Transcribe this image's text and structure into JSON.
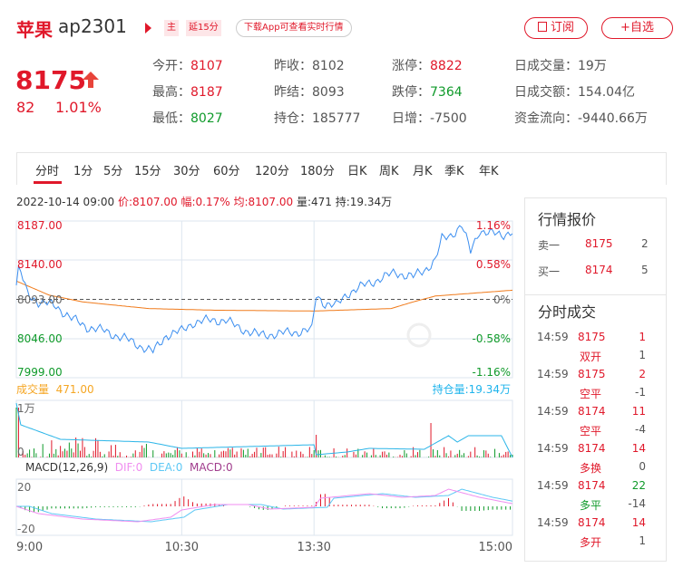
{
  "header": {
    "name": "苹果",
    "code": "ap2301",
    "badge_main": "主",
    "badge_delay": "延15分",
    "download_pill": "下载App可查看实时行情",
    "subscribe_label": "订阅",
    "watchlist_label": "+自选"
  },
  "quote": {
    "price": "8175",
    "change": "82",
    "change_pct": "1.01%",
    "direction": "up"
  },
  "stats": [
    {
      "label": "今开：",
      "value": "8107",
      "color": "red"
    },
    {
      "label": "昨收：",
      "value": "8102",
      "color": "grey"
    },
    {
      "label": "涨停：",
      "value": "8822",
      "color": "red"
    },
    {
      "label": "日成交量：",
      "value": "19万",
      "color": "grey"
    },
    {
      "label": "最高：",
      "value": "8187",
      "color": "red"
    },
    {
      "label": "昨结：",
      "value": "8093",
      "color": "grey"
    },
    {
      "label": "跌停：",
      "value": "7364",
      "color": "green"
    },
    {
      "label": "日成交额：",
      "value": "154.04亿",
      "color": "grey"
    },
    {
      "label": "最低：",
      "value": "8027",
      "color": "green"
    },
    {
      "label": "持仓：",
      "value": "185777",
      "color": "grey"
    },
    {
      "label": "日增：",
      "value": "-7500",
      "color": "grey"
    },
    {
      "label": "资金流向：",
      "value": "-9440.66万",
      "color": "grey"
    }
  ],
  "tabs": [
    "分时",
    "1分",
    "5分",
    "15分",
    "30分",
    "60分",
    "120分",
    "180分",
    "日K",
    "周K",
    "月K",
    "季K",
    "年K"
  ],
  "active_tab": "分时",
  "info": {
    "datetime": "2022-10-14 09:00",
    "price": "价:8107.00",
    "amp": "幅:0.17%",
    "avg": "均:8107.00",
    "vol": "量:471",
    "oi": "持:19.34万"
  },
  "chart": {
    "price_labels_left": [
      "8187.00",
      "8140.00",
      "8093.00",
      "8046.00",
      "7999.00"
    ],
    "pct_labels_right": [
      "1.16%",
      "0.58%",
      "0%",
      "-0.58%",
      "-1.16%"
    ],
    "y_range": [
      7999,
      8187
    ],
    "prev_settle": 8093,
    "time_labels": [
      "9:00",
      "10:30",
      "13:30",
      "15:00"
    ],
    "price_series": [
      [
        0,
        8110
      ],
      [
        1,
        8133
      ],
      [
        5,
        8100
      ],
      [
        10,
        8090
      ],
      [
        18,
        8085
      ],
      [
        25,
        8070
      ],
      [
        32,
        8060
      ],
      [
        40,
        8055
      ],
      [
        50,
        8045
      ],
      [
        58,
        8035
      ],
      [
        62,
        8030
      ],
      [
        68,
        8050
      ],
      [
        75,
        8055
      ],
      [
        80,
        8065
      ],
      [
        88,
        8068
      ],
      [
        95,
        8068
      ],
      [
        100,
        8060
      ],
      [
        110,
        8050
      ],
      [
        120,
        8052
      ],
      [
        130,
        8055
      ],
      [
        134,
        8056
      ],
      [
        136,
        8098
      ],
      [
        140,
        8088
      ],
      [
        145,
        8085
      ],
      [
        150,
        8100
      ],
      [
        158,
        8110
      ],
      [
        165,
        8118
      ],
      [
        172,
        8125
      ],
      [
        180,
        8120
      ],
      [
        185,
        8128
      ],
      [
        190,
        8140
      ],
      [
        193,
        8165
      ],
      [
        197,
        8170
      ],
      [
        202,
        8182
      ],
      [
        206,
        8150
      ],
      [
        210,
        8176
      ],
      [
        215,
        8172
      ],
      [
        220,
        8170
      ],
      [
        225,
        8175
      ]
    ],
    "avg_series": [
      [
        0,
        8115
      ],
      [
        15,
        8098
      ],
      [
        30,
        8090
      ],
      [
        60,
        8082
      ],
      [
        90,
        8080
      ],
      [
        135,
        8079
      ],
      [
        170,
        8082
      ],
      [
        180,
        8090
      ],
      [
        190,
        8097
      ],
      [
        225,
        8104
      ]
    ],
    "volume_label": "成交量",
    "volume_value": "471.00",
    "oi_label": "持仓量:19.34万",
    "volume_axis": [
      "1万",
      "0"
    ],
    "macd_title": "MACD(12,26,9)",
    "dif": "DIF:0",
    "dea": "DEA:0",
    "macd": "MACD:0",
    "macd_axis": [
      "20",
      "-20"
    ],
    "colors": {
      "price": "#3b8ef0",
      "avg": "#f07a1a",
      "oi": "#2bb5e8",
      "dif": "#f08ef0",
      "dea": "#5ec8f5",
      "macd": "#a03c8c",
      "up": "#e0182a",
      "down": "#0f9a2a"
    }
  },
  "quote_panel": {
    "title": "行情报价",
    "rows": [
      {
        "label": "卖一",
        "price": "8175",
        "vol": "2"
      },
      {
        "label": "买一",
        "price": "8174",
        "vol": "5"
      }
    ]
  },
  "trades_panel": {
    "title": "分时成交",
    "rows": [
      {
        "time": "14:59",
        "price": "8175",
        "vol": "1",
        "vol_color": "red",
        "type": "双开",
        "type_color": "red",
        "oi": "1"
      },
      {
        "time": "14:59",
        "price": "8175",
        "vol": "2",
        "vol_color": "red",
        "type": "空平",
        "type_color": "red",
        "oi": "-1"
      },
      {
        "time": "14:59",
        "price": "8174",
        "vol": "11",
        "vol_color": "red",
        "type": "空平",
        "type_color": "red",
        "oi": "-4"
      },
      {
        "time": "14:59",
        "price": "8174",
        "vol": "14",
        "vol_color": "red",
        "type": "多换",
        "type_color": "red",
        "oi": "0"
      },
      {
        "time": "14:59",
        "price": "8174",
        "vol": "22",
        "vol_color": "green",
        "type": "多平",
        "type_color": "green",
        "oi": "-14"
      },
      {
        "time": "14:59",
        "price": "8174",
        "vol": "14",
        "vol_color": "red",
        "type": "多开",
        "type_color": "red",
        "oi": "1"
      }
    ]
  }
}
